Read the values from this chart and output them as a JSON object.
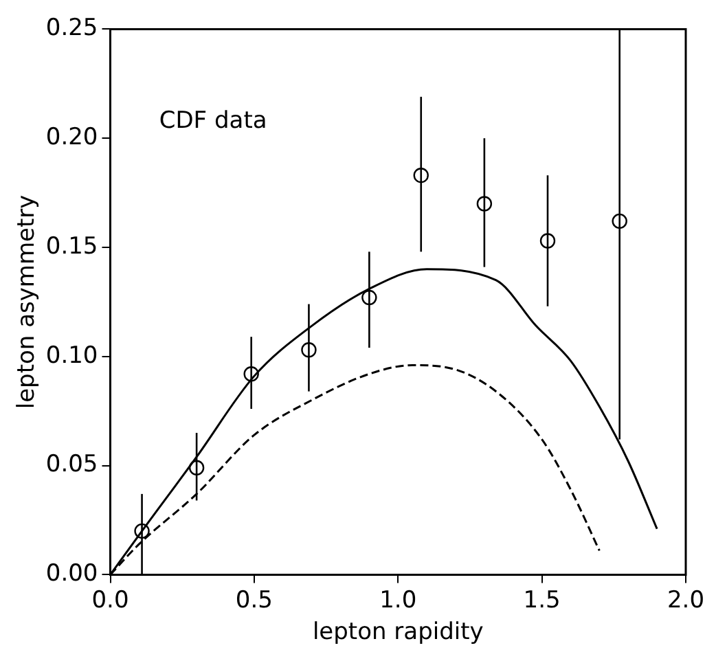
{
  "chart_data": {
    "type": "scatter",
    "xlabel": "lepton rapidity",
    "ylabel": "lepton asymmetry",
    "annotations": [
      "CDF data"
    ],
    "xlim": [
      0,
      2
    ],
    "ylim": [
      0,
      0.25
    ],
    "xticks": [
      {
        "value": 0,
        "label": "0.0"
      },
      {
        "value": 0.5,
        "label": "0.5"
      },
      {
        "value": 1,
        "label": "1.0"
      },
      {
        "value": 1.5,
        "label": "1.5"
      },
      {
        "value": 2,
        "label": "2.0"
      }
    ],
    "yticks": [
      {
        "value": 0,
        "label": "0.00"
      },
      {
        "value": 0.05,
        "label": "0.05"
      },
      {
        "value": 0.1,
        "label": "0.10"
      },
      {
        "value": 0.15,
        "label": "0.15"
      },
      {
        "value": 0.2,
        "label": "0.20"
      },
      {
        "value": 0.25,
        "label": "0.25"
      }
    ],
    "grid": false,
    "legend": false,
    "series": [
      {
        "color": "#000000",
        "marker": "circle",
        "x": [
          0.11,
          0.3,
          0.49,
          0.69,
          0.9,
          1.08,
          1.3,
          1.52,
          1.77
        ],
        "values": [
          0.02,
          0.049,
          0.092,
          0.103,
          0.127,
          0.183,
          0.17,
          0.153,
          0.162
        ],
        "errors": [
          [
            0,
            0.037
          ],
          [
            0.034,
            0.065
          ],
          [
            0.076,
            0.109
          ],
          [
            0.084,
            0.124
          ],
          [
            0.104,
            0.148
          ],
          [
            0.148,
            0.219
          ],
          [
            0.141,
            0.2
          ],
          [
            0.123,
            0.183
          ],
          [
            0.062,
            0.25
          ]
        ]
      },
      {
        "type": "line",
        "color": "#000000",
        "marker": "none",
        "line_style": "solid",
        "x": [
          0,
          0.11,
          0.3,
          0.5,
          0.7,
          0.9,
          1.1,
          1.34,
          1.48,
          1.6,
          1.7,
          1.8,
          1.9
        ],
        "values": [
          0,
          0.02,
          0.054,
          0.091,
          0.114,
          0.131,
          0.14,
          0.135,
          0.114,
          0.098,
          0.077,
          0.052,
          0.021
        ]
      },
      {
        "type": "line",
        "color": "#000000",
        "marker": "none",
        "line_style": "dashed",
        "x": [
          0,
          0.1,
          0.3,
          0.5,
          0.7,
          0.9,
          1.05,
          1.2,
          1.35,
          1.5,
          1.6,
          1.7
        ],
        "values": [
          0,
          0.014,
          0.037,
          0.064,
          0.08,
          0.092,
          0.096,
          0.094,
          0.083,
          0.062,
          0.039,
          0.011
        ]
      }
    ]
  }
}
